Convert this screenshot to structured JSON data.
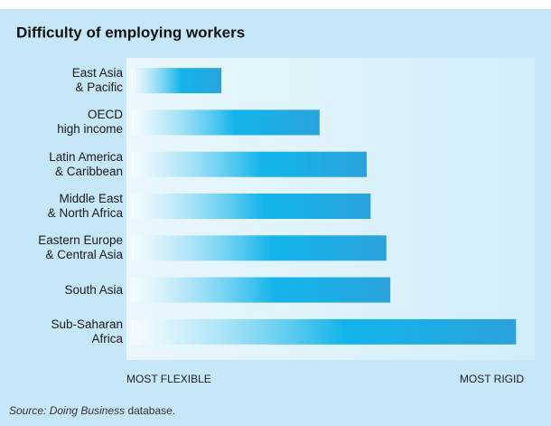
{
  "chart_data": {
    "type": "bar",
    "orientation": "horizontal",
    "title": "Difficulty of employing workers",
    "categories": [
      "East Asia\n& Pacific",
      "OECD\nhigh income",
      "Latin America\n& Caribbean",
      "Middle East\n& North Africa",
      "Eastern Europe\n& Central Asia",
      "South Asia",
      "Sub-Saharan\nAfrica"
    ],
    "values": [
      23,
      48,
      60,
      61,
      65,
      66,
      98
    ],
    "color": "#14b4ea",
    "xlim": [
      0,
      100
    ],
    "x_axis_labels": {
      "low": "MOST FLEXIBLE",
      "high": "MOST RIGID"
    },
    "source": {
      "prefix": "Source:",
      "title": "Doing Business",
      "suffix": "database."
    }
  }
}
